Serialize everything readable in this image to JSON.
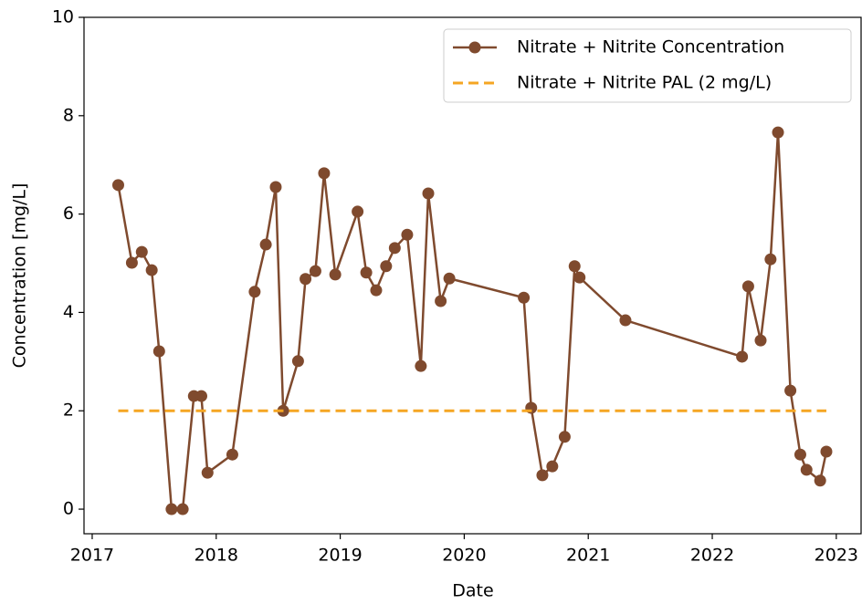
{
  "chart_data": {
    "type": "line",
    "xlabel": "Date",
    "ylabel": "Concentration [mg/L]",
    "xlim": [
      2016.934,
      2023.2
    ],
    "xticks": [
      2017,
      2018,
      2019,
      2020,
      2021,
      2022,
      2023
    ],
    "ylim": [
      -0.5,
      10
    ],
    "yticks": [
      0,
      2,
      4,
      6,
      8,
      10
    ],
    "legend": "upper right",
    "series": [
      {
        "name": "Nitrate + Nitrite Concentration",
        "color": "#7f4a2e",
        "style": "solid",
        "markers": true,
        "x": [
          2017.21,
          2017.32,
          2017.4,
          2017.48,
          2017.54,
          2017.64,
          2017.73,
          2017.82,
          2017.88,
          2017.93,
          2018.13,
          2018.31,
          2018.4,
          2018.48,
          2018.54,
          2018.66,
          2018.72,
          2018.8,
          2018.87,
          2018.96,
          2019.14,
          2019.21,
          2019.29,
          2019.37,
          2019.44,
          2019.54,
          2019.65,
          2019.71,
          2019.81,
          2019.88,
          2020.48,
          2020.54,
          2020.63,
          2020.71,
          2020.81,
          2020.89,
          2020.93,
          2021.3,
          2022.24,
          2022.29,
          2022.39,
          2022.47,
          2022.53,
          2022.63,
          2022.71,
          2022.76,
          2022.87,
          2022.92
        ],
        "values": [
          6.59,
          5.01,
          5.23,
          4.86,
          3.21,
          0,
          0,
          2.3,
          2.3,
          0.74,
          1.11,
          4.42,
          5.38,
          6.55,
          2.0,
          3.01,
          4.68,
          4.84,
          6.83,
          4.77,
          6.05,
          4.81,
          4.45,
          4.94,
          5.31,
          5.58,
          2.91,
          6.42,
          4.23,
          4.69,
          4.3,
          2.06,
          0.69,
          0.87,
          1.47,
          4.94,
          4.71,
          3.84,
          3.1,
          4.53,
          3.43,
          5.08,
          7.66,
          2.41,
          1.11,
          0.8,
          0.58,
          1.17
        ]
      },
      {
        "name": "Nitrate + Nitrite PAL (2 mg/L)",
        "color": "#f5a623",
        "style": "dashed",
        "markers": false,
        "x": [
          2017.21,
          2022.92
        ],
        "values": [
          2,
          2
        ]
      }
    ]
  }
}
